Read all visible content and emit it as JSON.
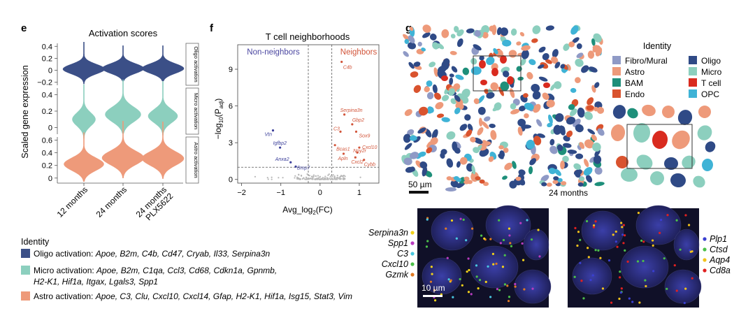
{
  "panels": {
    "e": {
      "letter": "e",
      "title": "Activation scores",
      "ylabel": "Scaled gene expression",
      "groups": [
        "12 months",
        "24 months",
        "24 months\nPLX5622"
      ],
      "group_lines": [
        [
          "12 months"
        ],
        [
          "24 months"
        ],
        [
          "24 months",
          "PLX5622"
        ]
      ],
      "rows": [
        {
          "label": "Oligo activation",
          "color": "#3b4f87",
          "ticks": [
            "0.4",
            "0.2",
            "0",
            "−0.2"
          ],
          "tick_values": [
            0.4,
            0.2,
            0,
            -0.2
          ],
          "ylim": [
            -0.25,
            0.45
          ]
        },
        {
          "label": "Micro activation",
          "color": "#8ccfbe",
          "ticks": [
            "0.4",
            "0.2",
            "0"
          ],
          "tick_values": [
            0.4,
            0.2,
            0
          ],
          "ylim": [
            -0.08,
            0.48
          ]
        },
        {
          "label": "Astro activation",
          "color": "#ee9a7a",
          "ticks": [
            "0.6",
            "0.4",
            "0.2",
            "0"
          ],
          "tick_values": [
            0.6,
            0.4,
            0.2,
            0
          ],
          "ylim": [
            -0.08,
            0.65
          ]
        }
      ]
    },
    "legend_e": {
      "title": "Identity",
      "items": [
        {
          "color": "#3b4f87",
          "label": "Oligo activation: ",
          "genes": "Apoe, B2m, C4b, Cd47, Cryab, Il33, Serpina3n",
          "genes2": ""
        },
        {
          "color": "#8ccfbe",
          "label": "Micro activation: ",
          "genes": "Apoe, B2m, C1qa, Ccl3, Cd68, Cdkn1a, Gpnmb,",
          "genes2": "H2-K1, Hif1a, Itgax, Lgals3, Spp1"
        },
        {
          "color": "#ee9a7a",
          "label": "Astro activation: ",
          "genes": "Apoe, C3, Clu, Cxcl10, Cxcl14, Gfap, H2-K1, Hif1a, Isg15, Stat3, Vim",
          "genes2": ""
        }
      ]
    },
    "f": {
      "letter": "f",
      "title": "T cell neighborhoods",
      "non_neighbors_label": "Non-neighbors",
      "neighbors_label": "Neighbors",
      "xlabel_prefix": "Avg_log",
      "xlabel_sub": "2",
      "xlabel_suffix": "(FC)",
      "ylabel_prefix": "−log",
      "ylabel_sub": "10",
      "ylabel_mid": "(P",
      "ylabel_sub2": "adj",
      "ylabel_suffix": ")",
      "xticks": [
        "−2",
        "−1",
        "0",
        "1"
      ],
      "xtick_values": [
        -2,
        -1,
        0,
        1
      ],
      "yticks": [
        "0",
        "3",
        "6",
        "9"
      ],
      "ytick_values": [
        0,
        3,
        6,
        9
      ],
      "xlim": [
        -2.1,
        1.5
      ],
      "ylim": [
        -0.3,
        11
      ]
    },
    "g": {
      "letter": "g",
      "scale_top": "50 µm",
      "age_label": "24 months",
      "scale_bottom": "10 µm",
      "legend_title": "Identity",
      "identity": [
        {
          "label": "Fibro/Mural",
          "color": "#8f9ac6"
        },
        {
          "label": "Oligo",
          "color": "#2f4a86"
        },
        {
          "label": "Astro",
          "color": "#ee9a7a"
        },
        {
          "label": "Micro",
          "color": "#8ccfbe"
        },
        {
          "label": "BAM",
          "color": "#1e8f7a"
        },
        {
          "label": "T cell",
          "color": "#d92b1f"
        },
        {
          "label": "Endo",
          "color": "#d9532e"
        },
        {
          "label": "OPC",
          "color": "#3fb3d6"
        }
      ],
      "left_genes": [
        {
          "label": "Serpina3n",
          "color": "#f2d21b"
        },
        {
          "label": "Spp1",
          "color": "#b93cc0"
        },
        {
          "label": "C3",
          "color": "#49c7e0"
        },
        {
          "label": "Cxcl10",
          "color": "#4cc04a"
        },
        {
          "label": "Gzmk",
          "color": "#e07a23"
        }
      ],
      "right_genes": [
        {
          "label": "Plp1",
          "color": "#3a3fd0"
        },
        {
          "label": "Ctsd",
          "color": "#4cc04a"
        },
        {
          "label": "Aqp4",
          "color": "#f2c21b"
        },
        {
          "label": "Cd8a",
          "color": "#e02020"
        }
      ]
    }
  },
  "chart_data": {
    "type": "scatter",
    "title": "T cell neighborhoods",
    "xlabel": "Avg_log2(FC)",
    "ylabel": "−log10(Padj)",
    "xlim": [
      -2.1,
      1.5
    ],
    "ylim": [
      -0.3,
      11
    ],
    "thresholds": {
      "x": [
        -0.3,
        0.3
      ],
      "y": 1.0
    },
    "points": [
      {
        "gene": "C4b",
        "x": 0.55,
        "y": 9.6,
        "group": "Neighbors",
        "labeled": true
      },
      {
        "gene": "Serpina3n",
        "x": 0.62,
        "y": 5.3,
        "group": "Neighbors",
        "labeled": true
      },
      {
        "gene": "Gbp2",
        "x": 0.82,
        "y": 4.5,
        "group": "Neighbors",
        "labeled": true
      },
      {
        "gene": "Sox9",
        "x": 0.92,
        "y": 3.9,
        "group": "Neighbors",
        "labeled": true
      },
      {
        "gene": "C3",
        "x": 0.52,
        "y": 3.9,
        "group": "Neighbors",
        "labeled": true
      },
      {
        "gene": "Bcas1",
        "x": 0.38,
        "y": 2.8,
        "group": "Neighbors",
        "labeled": true
      },
      {
        "gene": "Cxcl10",
        "x": 1.0,
        "y": 2.6,
        "group": "Neighbors",
        "labeled": true
      },
      {
        "gene": "Apln",
        "x": 0.6,
        "y": 2.1,
        "group": "Neighbors",
        "labeled": true
      },
      {
        "gene": "Npy2r",
        "x": 0.95,
        "y": 2.2,
        "group": "Neighbors",
        "labeled": true
      },
      {
        "gene": "Cxcl2",
        "x": 0.9,
        "y": 1.8,
        "group": "Neighbors",
        "labeled": true
      },
      {
        "gene": "Cybb",
        "x": 1.12,
        "y": 1.6,
        "group": "Neighbors",
        "labeled": true
      },
      {
        "gene": "Vtn",
        "x": -1.2,
        "y": 4.0,
        "group": "Non-neighbors",
        "labeled": true
      },
      {
        "gene": "Igfbp2",
        "x": -1.02,
        "y": 2.6,
        "group": "Non-neighbors",
        "labeled": true
      },
      {
        "gene": "Anxa2",
        "x": -0.75,
        "y": 1.4,
        "group": "Non-neighbors",
        "labeled": true
      },
      {
        "gene": "Bmp7",
        "x": -0.62,
        "y": 1.05,
        "group": "Non-neighbors",
        "labeled": true
      }
    ]
  }
}
